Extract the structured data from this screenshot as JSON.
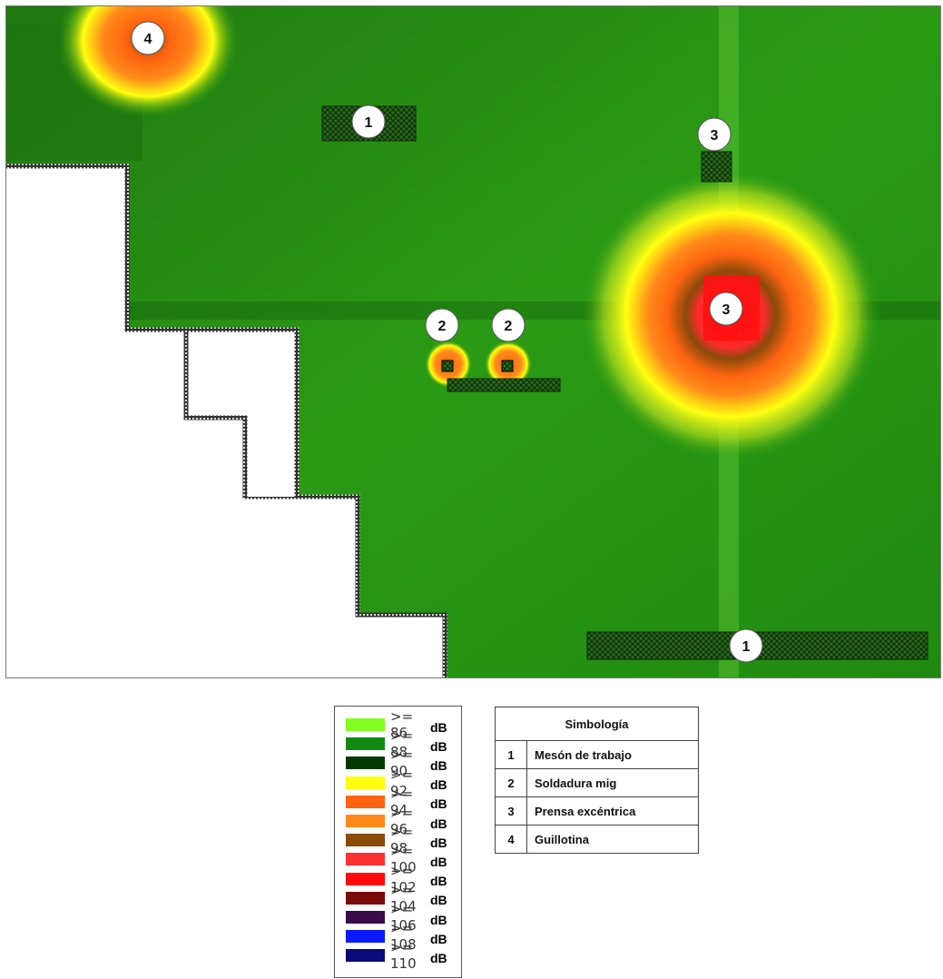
{
  "legend": {
    "items": [
      {
        "label": ">= 86",
        "unit": "dB",
        "color": "#80ff20"
      },
      {
        "label": ">= 88",
        "unit": "dB",
        "color": "#108a10"
      },
      {
        "label": ">= 90",
        "unit": "dB",
        "color": "#003a00"
      },
      {
        "label": ">= 92",
        "unit": "dB",
        "color": "#ffff10"
      },
      {
        "label": ">= 94",
        "unit": "dB",
        "color": "#ff6410"
      },
      {
        "label": ">= 96",
        "unit": "dB",
        "color": "#ff8a1a"
      },
      {
        "label": ">= 98",
        "unit": "dB",
        "color": "#8a4a0a"
      },
      {
        "label": ">= 100",
        "unit": "dB",
        "color": "#ff3030"
      },
      {
        "label": ">= 102",
        "unit": "dB",
        "color": "#ff0a0a"
      },
      {
        "label": ">= 104",
        "unit": "dB",
        "color": "#7a0a0a"
      },
      {
        "label": ">= 106",
        "unit": "dB",
        "color": "#3a0a4a"
      },
      {
        "label": ">= 108",
        "unit": "dB",
        "color": "#0a1aff"
      },
      {
        "label": ">= 110",
        "unit": "dB",
        "color": "#0a0a7a"
      }
    ]
  },
  "symbology": {
    "title": "Simbología",
    "rows": [
      {
        "num": "1",
        "label": "Mesón de trabajo"
      },
      {
        "num": "2",
        "label": "Soldadura  mig"
      },
      {
        "num": "3",
        "label": "Prensa excéntrica"
      },
      {
        "num": "4",
        "label": "Guillotina"
      }
    ]
  },
  "map": {
    "markers": [
      {
        "id": "marker-guillotina",
        "text": "4"
      },
      {
        "id": "marker-meson-top",
        "text": "1"
      },
      {
        "id": "marker-prensa-small",
        "text": "3"
      },
      {
        "id": "marker-prensa-big",
        "text": "3"
      },
      {
        "id": "marker-soldadura-left",
        "text": "2"
      },
      {
        "id": "marker-soldadura-right",
        "text": "2"
      },
      {
        "id": "marker-meson-bottom",
        "text": "1"
      }
    ]
  }
}
